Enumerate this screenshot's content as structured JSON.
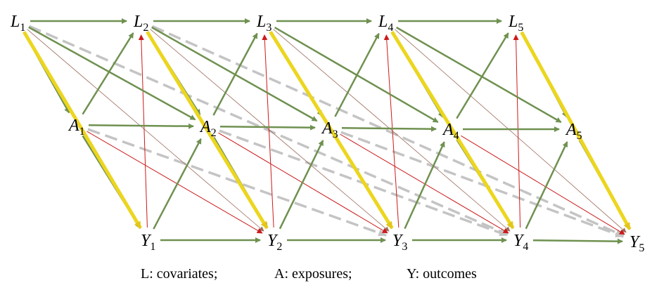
{
  "nodes": [
    {
      "label": "L",
      "sub": "1"
    },
    {
      "label": "L",
      "sub": "2"
    },
    {
      "label": "L",
      "sub": "3"
    },
    {
      "label": "L",
      "sub": "4"
    },
    {
      "label": "L",
      "sub": "5"
    },
    {
      "label": "A",
      "sub": "1"
    },
    {
      "label": "A",
      "sub": "2"
    },
    {
      "label": "A",
      "sub": "3"
    },
    {
      "label": "A",
      "sub": "4"
    },
    {
      "label": "A",
      "sub": "5"
    },
    {
      "label": "Y",
      "sub": "1"
    },
    {
      "label": "Y",
      "sub": "2"
    },
    {
      "label": "Y",
      "sub": "3"
    },
    {
      "label": "Y",
      "sub": "4"
    },
    {
      "label": "Y",
      "sub": "5"
    }
  ],
  "caption": [
    "L: covariates;",
    "A: exposures;",
    "Y: outcomes"
  ]
}
